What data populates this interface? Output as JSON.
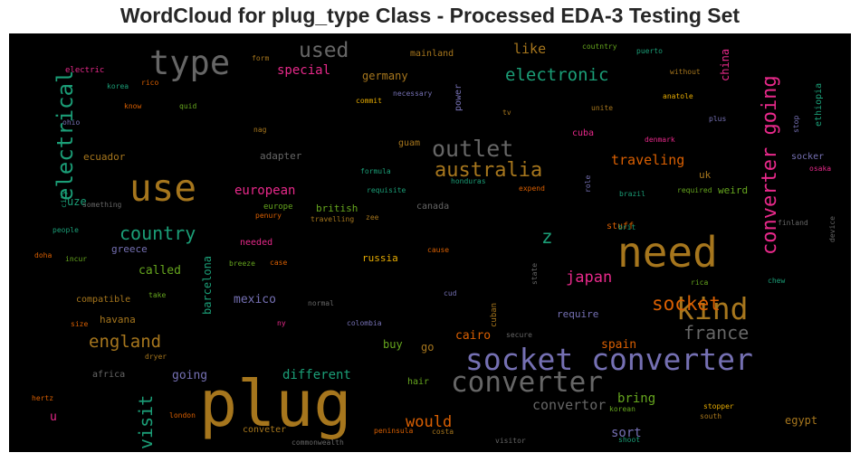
{
  "chart_data": {
    "type": "wordcloud",
    "title": "WordCloud for plug_type Class - Processed EDA-3 Testing Set",
    "background": "#000000",
    "palette": {
      "orange": "#b0782a",
      "purple": "#7570b3",
      "green": "#1b9e77",
      "pink": "#e7298a",
      "gray": "#666666",
      "olive": "#66a61e",
      "rust": "#d95f02",
      "gold": "#a6761d"
    },
    "words": [
      {
        "text": "plug",
        "weight": 100,
        "color": "#a6761d",
        "vertical": false
      },
      {
        "text": "need",
        "weight": 72,
        "color": "#a6761d",
        "vertical": false
      },
      {
        "text": "socket converter",
        "weight": 55,
        "color": "#7570b3",
        "vertical": false
      },
      {
        "text": "use",
        "weight": 58,
        "color": "#a6761d",
        "vertical": false
      },
      {
        "text": "type",
        "weight": 50,
        "color": "#666666",
        "vertical": false
      },
      {
        "text": "converter",
        "weight": 44,
        "color": "#666666",
        "vertical": false
      },
      {
        "text": "kind",
        "weight": 44,
        "color": "#a6761d",
        "vertical": false
      },
      {
        "text": "converter going",
        "weight": 40,
        "color": "#e7298a",
        "vertical": true
      },
      {
        "text": "electrical",
        "weight": 38,
        "color": "#1b9e77",
        "vertical": true
      },
      {
        "text": "outlet",
        "weight": 34,
        "color": "#666666",
        "vertical": false
      },
      {
        "text": "australia",
        "weight": 32,
        "color": "#a6761d",
        "vertical": false
      },
      {
        "text": "used",
        "weight": 32,
        "color": "#666666",
        "vertical": false
      },
      {
        "text": "socket",
        "weight": 30,
        "color": "#d95f02",
        "vertical": false
      },
      {
        "text": "visit",
        "weight": 28,
        "color": "#1b9e77",
        "vertical": true
      },
      {
        "text": "country",
        "weight": 26,
        "color": "#1b9e77",
        "vertical": false
      },
      {
        "text": "france",
        "weight": 26,
        "color": "#666666",
        "vertical": false
      },
      {
        "text": "electronic",
        "weight": 24,
        "color": "#1b9e77",
        "vertical": false
      },
      {
        "text": "england",
        "weight": 24,
        "color": "#a6761d",
        "vertical": false
      },
      {
        "text": "z",
        "weight": 24,
        "color": "#1b9e77",
        "vertical": false
      },
      {
        "text": "would",
        "weight": 22,
        "color": "#d95f02",
        "vertical": false
      },
      {
        "text": "japan",
        "weight": 22,
        "color": "#e7298a",
        "vertical": false
      },
      {
        "text": "traveling",
        "weight": 19,
        "color": "#d95f02",
        "vertical": false
      },
      {
        "text": "convertor",
        "weight": 19,
        "color": "#666666",
        "vertical": false
      },
      {
        "text": "special",
        "weight": 17,
        "color": "#e7298a",
        "vertical": false
      },
      {
        "text": "like",
        "weight": 17,
        "color": "#a6761d",
        "vertical": false
      },
      {
        "text": "european",
        "weight": 16,
        "color": "#e7298a",
        "vertical": false
      },
      {
        "text": "different",
        "weight": 16,
        "color": "#1b9e77",
        "vertical": false
      },
      {
        "text": "sort",
        "weight": 16,
        "color": "#7570b3",
        "vertical": false
      },
      {
        "text": "mexico",
        "weight": 15,
        "color": "#7570b3",
        "vertical": false
      },
      {
        "text": "spain",
        "weight": 15,
        "color": "#d95f02",
        "vertical": false
      },
      {
        "text": "bring",
        "weight": 15,
        "color": "#66a61e",
        "vertical": false
      },
      {
        "text": "cairo",
        "weight": 15,
        "color": "#d95f02",
        "vertical": false
      },
      {
        "text": "called",
        "weight": 14,
        "color": "#66a61e",
        "vertical": false
      },
      {
        "text": "going",
        "weight": 14,
        "color": "#7570b3",
        "vertical": false
      },
      {
        "text": "germany",
        "weight": 13,
        "color": "#a6761d",
        "vertical": false
      },
      {
        "text": "barcelona",
        "weight": 13,
        "color": "#1b9e77",
        "vertical": true
      },
      {
        "text": "egypt",
        "weight": 13,
        "color": "#a6761d",
        "vertical": false
      },
      {
        "text": "buy",
        "weight": 13,
        "color": "#66a61e",
        "vertical": false
      },
      {
        "text": "go",
        "weight": 13,
        "color": "#a6761d",
        "vertical": false
      },
      {
        "text": "uze",
        "weight": 13,
        "color": "#1b9e77",
        "vertical": false
      },
      {
        "text": "china",
        "weight": 13,
        "color": "#e7298a",
        "vertical": true
      },
      {
        "text": "u",
        "weight": 13,
        "color": "#e7298a",
        "vertical": false
      },
      {
        "text": "power",
        "weight": 12,
        "color": "#7570b3",
        "vertical": true
      },
      {
        "text": "weird",
        "weight": 12,
        "color": "#66a61e",
        "vertical": false
      },
      {
        "text": "uk",
        "weight": 12,
        "color": "#a6761d",
        "vertical": false
      },
      {
        "text": "british",
        "weight": 12,
        "color": "#66a61e",
        "vertical": false
      },
      {
        "text": "havana",
        "weight": 12,
        "color": "#a6761d",
        "vertical": false
      },
      {
        "text": "russia",
        "weight": 12,
        "color": "#e6ab02",
        "vertical": false
      },
      {
        "text": "compatible",
        "weight": 11,
        "color": "#a6761d",
        "vertical": false
      },
      {
        "text": "greece",
        "weight": 11,
        "color": "#7570b3",
        "vertical": false
      },
      {
        "text": "require",
        "weight": 11,
        "color": "#7570b3",
        "vertical": false
      },
      {
        "text": "ecuador",
        "weight": 11,
        "color": "#a6761d",
        "vertical": false
      },
      {
        "text": "adapter",
        "weight": 11,
        "color": "#666666",
        "vertical": false
      },
      {
        "text": "mainland",
        "weight": 11,
        "color": "#a6761d",
        "vertical": false
      },
      {
        "text": "electric",
        "weight": 10,
        "color": "#e7298a",
        "vertical": false
      },
      {
        "text": "ethiopia",
        "weight": 10,
        "color": "#1b9e77",
        "vertical": true
      },
      {
        "text": "cuba",
        "weight": 10,
        "color": "#e7298a",
        "vertical": false
      },
      {
        "text": "guam",
        "weight": 10,
        "color": "#a6761d",
        "vertical": false
      },
      {
        "text": "socker",
        "weight": 10,
        "color": "#7570b3",
        "vertical": false
      },
      {
        "text": "africa",
        "weight": 10,
        "color": "#666666",
        "vertical": false
      },
      {
        "text": "stuff",
        "weight": 10,
        "color": "#d95f02",
        "vertical": false
      },
      {
        "text": "needed",
        "weight": 10,
        "color": "#e7298a",
        "vertical": false
      },
      {
        "text": "canada",
        "weight": 10,
        "color": "#666666",
        "vertical": false
      },
      {
        "text": "hair",
        "weight": 10,
        "color": "#66a61e",
        "vertical": false
      },
      {
        "text": "conveter",
        "weight": 10,
        "color": "#a6761d",
        "vertical": false
      },
      {
        "text": "cuban",
        "weight": 9,
        "color": "#a6761d",
        "vertical": true
      },
      {
        "text": "europe",
        "weight": 9,
        "color": "#66a61e",
        "vertical": false
      },
      {
        "text": "cause",
        "weight": 8,
        "color": "#d95f02",
        "vertical": false
      },
      {
        "text": "coutntry",
        "weight": 8,
        "color": "#66a61e",
        "vertical": false
      },
      {
        "text": "puerto",
        "weight": 8,
        "color": "#1b9e77",
        "vertical": false
      },
      {
        "text": "rico",
        "weight": 8,
        "color": "#d95f02",
        "vertical": false
      },
      {
        "text": "form",
        "weight": 8,
        "color": "#a6761d",
        "vertical": false
      },
      {
        "text": "korea",
        "weight": 8,
        "color": "#1b9e77",
        "vertical": false
      },
      {
        "text": "know",
        "weight": 8,
        "color": "#d95f02",
        "vertical": false
      },
      {
        "text": "quid",
        "weight": 8,
        "color": "#66a61e",
        "vertical": false
      },
      {
        "text": "commit",
        "weight": 8,
        "color": "#e6ab02",
        "vertical": false
      },
      {
        "text": "necessary",
        "weight": 8,
        "color": "#7570b3",
        "vertical": false
      },
      {
        "text": "without",
        "weight": 8,
        "color": "#a6761d",
        "vertical": false
      },
      {
        "text": "anatole",
        "weight": 8,
        "color": "#e6ab02",
        "vertical": false
      },
      {
        "text": "unite",
        "weight": 8,
        "color": "#a6761d",
        "vertical": false
      },
      {
        "text": "tv",
        "weight": 8,
        "color": "#a6761d",
        "vertical": false
      },
      {
        "text": "plus",
        "weight": 8,
        "color": "#7570b3",
        "vertical": false
      },
      {
        "text": "stop",
        "weight": 8,
        "color": "#7570b3",
        "vertical": true
      },
      {
        "text": "ohio",
        "weight": 8,
        "color": "#7570b3",
        "vertical": false
      },
      {
        "text": "nag",
        "weight": 8,
        "color": "#a6761d",
        "vertical": false
      },
      {
        "text": "denmark",
        "weight": 8,
        "color": "#e7298a",
        "vertical": false
      },
      {
        "text": "osaka",
        "weight": 8,
        "color": "#e7298a",
        "vertical": false
      },
      {
        "text": "formula",
        "weight": 8,
        "color": "#1b9e77",
        "vertical": false
      },
      {
        "text": "honduras",
        "weight": 8,
        "color": "#1b9e77",
        "vertical": false
      },
      {
        "text": "expend",
        "weight": 8,
        "color": "#d95f02",
        "vertical": false
      },
      {
        "text": "role",
        "weight": 8,
        "color": "#7570b3",
        "vertical": true
      },
      {
        "text": "brazil",
        "weight": 8,
        "color": "#1b9e77",
        "vertical": false
      },
      {
        "text": "required",
        "weight": 8,
        "color": "#66a61e",
        "vertical": false
      },
      {
        "text": "requisite",
        "weight": 8,
        "color": "#1b9e77",
        "vertical": false
      },
      {
        "text": "something",
        "weight": 8,
        "color": "#666666",
        "vertical": false
      },
      {
        "text": "city",
        "weight": 8,
        "color": "#1b9e77",
        "vertical": true
      },
      {
        "text": "zee",
        "weight": 8,
        "color": "#a6761d",
        "vertical": false
      },
      {
        "text": "penury",
        "weight": 8,
        "color": "#d95f02",
        "vertical": false
      },
      {
        "text": "travelling",
        "weight": 8,
        "color": "#a6761d",
        "vertical": false
      },
      {
        "text": "people",
        "weight": 8,
        "color": "#1b9e77",
        "vertical": false
      },
      {
        "text": "brit",
        "weight": 8,
        "color": "#1b9e77",
        "vertical": false
      },
      {
        "text": "finland",
        "weight": 8,
        "color": "#666666",
        "vertical": false
      },
      {
        "text": "device",
        "weight": 8,
        "color": "#666666",
        "vertical": true
      },
      {
        "text": "doha",
        "weight": 8,
        "color": "#d95f02",
        "vertical": false
      },
      {
        "text": "incur",
        "weight": 8,
        "color": "#66a61e",
        "vertical": false
      },
      {
        "text": "breeze",
        "weight": 8,
        "color": "#66a61e",
        "vertical": false
      },
      {
        "text": "case",
        "weight": 8,
        "color": "#d95f02",
        "vertical": false
      },
      {
        "text": "state",
        "weight": 8,
        "color": "#666666",
        "vertical": true
      },
      {
        "text": "rica",
        "weight": 8,
        "color": "#66a61e",
        "vertical": false
      },
      {
        "text": "chew",
        "weight": 8,
        "color": "#1b9e77",
        "vertical": false
      },
      {
        "text": "take",
        "weight": 8,
        "color": "#66a61e",
        "vertical": false
      },
      {
        "text": "cud",
        "weight": 8,
        "color": "#7570b3",
        "vertical": false
      },
      {
        "text": "normal",
        "weight": 8,
        "color": "#666666",
        "vertical": false
      },
      {
        "text": "size",
        "weight": 8,
        "color": "#d95f02",
        "vertical": false
      },
      {
        "text": "ny",
        "weight": 8,
        "color": "#e7298a",
        "vertical": false
      },
      {
        "text": "colombia",
        "weight": 8,
        "color": "#7570b3",
        "vertical": false
      },
      {
        "text": "secure",
        "weight": 8,
        "color": "#666666",
        "vertical": false
      },
      {
        "text": "dryer",
        "weight": 8,
        "color": "#a6761d",
        "vertical": false
      },
      {
        "text": "hertz",
        "weight": 8,
        "color": "#d95f02",
        "vertical": false
      },
      {
        "text": "stopper",
        "weight": 8,
        "color": "#e6ab02",
        "vertical": false
      },
      {
        "text": "korean",
        "weight": 8,
        "color": "#66a61e",
        "vertical": false
      },
      {
        "text": "south",
        "weight": 8,
        "color": "#a6761d",
        "vertical": false
      },
      {
        "text": "london",
        "weight": 8,
        "color": "#d95f02",
        "vertical": false
      },
      {
        "text": "peninsula",
        "weight": 8,
        "color": "#d95f02",
        "vertical": false
      },
      {
        "text": "costa",
        "weight": 8,
        "color": "#a6761d",
        "vertical": false
      },
      {
        "text": "shoot",
        "weight": 8,
        "color": "#1b9e77",
        "vertical": false
      },
      {
        "text": "commonwealth",
        "weight": 8,
        "color": "#666666",
        "vertical": false
      },
      {
        "text": "visitor",
        "weight": 8,
        "color": "#666666",
        "vertical": false
      }
    ]
  }
}
